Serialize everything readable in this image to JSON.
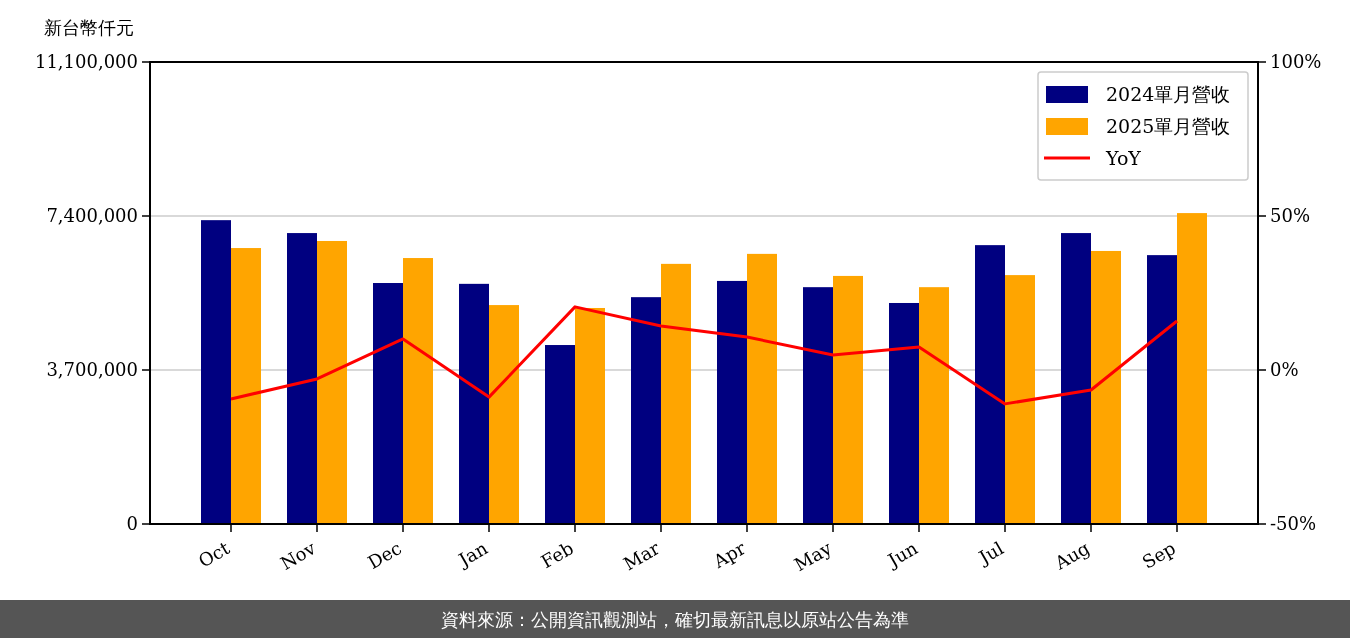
{
  "chart_data": {
    "type": "bar",
    "ylabel": "新台幣仟元",
    "categories": [
      "Oct",
      "Nov",
      "Dec",
      "Jan",
      "Feb",
      "Mar",
      "Apr",
      "May",
      "Jun",
      "Jul",
      "Aug",
      "Sep"
    ],
    "series": [
      {
        "name": "2024單月營收",
        "color": "#000080",
        "values": [
          7300000,
          6990000,
          5790000,
          5770000,
          4300000,
          5450000,
          5840000,
          5690000,
          5310000,
          6700000,
          6990000,
          6460000
        ]
      },
      {
        "name": "2025單月營收",
        "color": "#ffa500",
        "values": [
          6630000,
          6800000,
          6390000,
          5260000,
          5190000,
          6250000,
          6490000,
          5960000,
          5690000,
          5980000,
          6560000,
          7470000
        ]
      },
      {
        "name": "YoY",
        "type": "line",
        "axis": "y2",
        "color": "#ff0000",
        "values": [
          -9.4,
          -2.9,
          10.1,
          -8.8,
          20.5,
          14.3,
          10.7,
          4.9,
          7.5,
          -11,
          -6.5,
          15.9
        ]
      }
    ],
    "ylim": [
      0,
      11100000
    ],
    "yticks": [
      0,
      {
        "value": 3700000,
        "label": "3,700,000"
      },
      {
        "value": 7400000,
        "label": "7,400,000"
      },
      {
        "value": 11100000,
        "label": "11,100,000"
      }
    ],
    "y2lim": [
      -50,
      100
    ],
    "y2ticks": [
      {
        "value": -50,
        "label": "-50%"
      },
      {
        "value": 0,
        "label": "0%"
      },
      {
        "value": 50,
        "label": "50%"
      },
      {
        "value": 100,
        "label": "100%"
      }
    ],
    "grid": "y",
    "legend": "top right",
    "annotations": [
      "資料來源：公開資訊觀測站，確切最新訊息以原站公告為準"
    ]
  }
}
